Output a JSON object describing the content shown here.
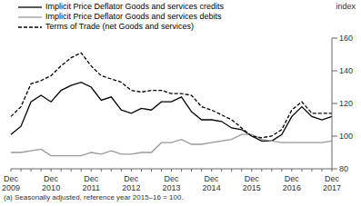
{
  "chart_data": {
    "type": "line",
    "footnote": "(a) Seasonally adjusted, reference year 2015–16 = 100.",
    "y_label": "index",
    "categories": [
      "Dec 2009",
      null,
      null,
      null,
      "Dec 2010",
      null,
      null,
      null,
      "Dec 2011",
      null,
      null,
      null,
      "Dec 2012",
      null,
      null,
      null,
      "Dec 2013",
      null,
      null,
      null,
      "Dec 2014",
      null,
      null,
      null,
      "Dec 2015",
      null,
      null,
      null,
      "Dec 2016",
      null,
      null,
      null,
      "Dec 2017"
    ],
    "series": [
      {
        "name": "Implicit Price Deflator Goods and services credits",
        "color": "#000000",
        "line_style": "solid",
        "values": [
          101,
          106,
          121,
          125,
          121,
          128,
          131,
          133,
          130,
          122,
          124,
          116,
          114,
          117,
          116,
          121,
          121,
          124,
          115,
          110,
          110,
          109,
          105,
          104,
          100,
          97,
          97,
          101,
          112,
          118,
          112,
          110,
          112
        ]
      },
      {
        "name": "Implicit Price Deflator Goods and services debits",
        "color": "#999999",
        "line_style": "solid",
        "values": [
          90,
          90,
          91,
          92,
          88,
          88,
          88,
          88,
          90,
          89,
          91,
          89,
          89,
          90,
          90,
          96,
          96,
          98,
          95,
          95,
          96,
          97,
          98,
          101,
          101,
          98,
          97,
          96,
          96,
          96,
          96,
          96,
          97
        ]
      },
      {
        "name": "Terms of Trade (net Goods and services)",
        "color": "#000000",
        "line_style": "dashed",
        "values": [
          112,
          118,
          132,
          134,
          137,
          143,
          148,
          151,
          143,
          137,
          135,
          133,
          128,
          127,
          128,
          128,
          126,
          126,
          125,
          118,
          116,
          113,
          110,
          105,
          100,
          99,
          100,
          104,
          116,
          121,
          114,
          114,
          114
        ]
      }
    ],
    "ylim": [
      80,
      160
    ],
    "yticks": [
      80,
      100,
      120,
      140,
      160
    ],
    "grid": false,
    "legend": "top-left"
  }
}
